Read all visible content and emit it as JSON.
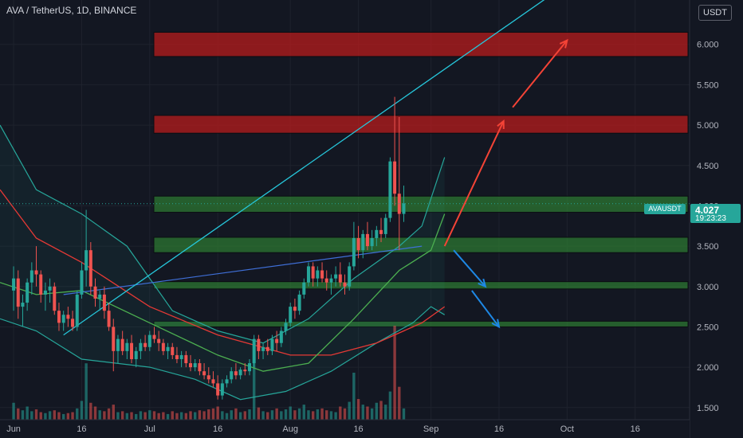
{
  "header": {
    "title": "AVA / TetherUS, 1D, BINANCE",
    "currency_button": "USDT"
  },
  "price_tag": {
    "symbol": "AVAUSDT",
    "price": "4.027",
    "countdown": "19:23:23"
  },
  "colors": {
    "background": "#131722",
    "up": "#26a69a",
    "down": "#ef5350",
    "trendline": "#26c6da",
    "support_zone": "#2e7d32",
    "resistance_zone": "#b71c1c",
    "arrow_up": "#f44336",
    "arrow_down": "#1e88e5",
    "bollinger": "#26a69a",
    "ma_red": "#e53935",
    "ma_green": "#4caf50"
  },
  "chart_data": {
    "type": "candlestick",
    "x_axis": {
      "tick_labels": [
        "Jun",
        "16",
        "Jul",
        "16",
        "Aug",
        "16",
        "Sep",
        "16",
        "Oct",
        "16"
      ],
      "tick_days": [
        0,
        15,
        30,
        45,
        61,
        76,
        92,
        107,
        122,
        137
      ],
      "range_days": [
        -3,
        149
      ]
    },
    "y_axis": {
      "tick_labels": [
        "1.500",
        "2.000",
        "2.500",
        "3.000",
        "3.500",
        "4.000",
        "4.500",
        "5.000",
        "5.500",
        "6.000"
      ],
      "tick_values": [
        1.5,
        2.0,
        2.5,
        3.0,
        3.5,
        4.0,
        4.5,
        5.0,
        5.5,
        6.0
      ],
      "range": [
        1.35,
        6.55
      ]
    },
    "last_price": 4.027,
    "ohlc_daily_from_jun1": [
      [
        2.95,
        3.25,
        2.7,
        3.1
      ],
      [
        3.1,
        3.2,
        2.6,
        2.75
      ],
      [
        2.75,
        2.9,
        2.5,
        2.8
      ],
      [
        2.8,
        3.1,
        2.7,
        3.05
      ],
      [
        3.05,
        3.3,
        2.9,
        3.2
      ],
      [
        3.2,
        3.5,
        3.0,
        3.15
      ],
      [
        3.15,
        3.2,
        2.8,
        2.9
      ],
      [
        2.9,
        3.05,
        2.7,
        2.95
      ],
      [
        2.95,
        3.1,
        2.8,
        3.0
      ],
      [
        3.0,
        3.05,
        2.65,
        2.7
      ],
      [
        2.7,
        2.8,
        2.45,
        2.55
      ],
      [
        2.55,
        2.7,
        2.45,
        2.65
      ],
      [
        2.65,
        2.75,
        2.5,
        2.6
      ],
      [
        2.6,
        2.7,
        2.45,
        2.5
      ],
      [
        2.5,
        2.95,
        2.45,
        2.9
      ],
      [
        2.9,
        3.3,
        2.85,
        3.2
      ],
      [
        3.2,
        3.95,
        3.0,
        3.45
      ],
      [
        3.45,
        3.55,
        2.9,
        3.0
      ],
      [
        3.0,
        3.1,
        2.75,
        2.85
      ],
      [
        2.85,
        2.95,
        2.7,
        2.9
      ],
      [
        2.9,
        3.0,
        2.6,
        2.7
      ],
      [
        2.7,
        2.8,
        2.45,
        2.5
      ],
      [
        2.5,
        2.6,
        1.95,
        2.2
      ],
      [
        2.2,
        2.4,
        2.05,
        2.35
      ],
      [
        2.35,
        2.45,
        2.15,
        2.2
      ],
      [
        2.2,
        2.35,
        2.1,
        2.3
      ],
      [
        2.3,
        2.4,
        2.05,
        2.1
      ],
      [
        2.1,
        2.25,
        2.0,
        2.2
      ],
      [
        2.2,
        2.35,
        2.1,
        2.3
      ],
      [
        2.3,
        2.4,
        2.2,
        2.25
      ],
      [
        2.25,
        2.45,
        2.2,
        2.4
      ],
      [
        2.4,
        2.5,
        2.3,
        2.35
      ],
      [
        2.35,
        2.45,
        2.2,
        2.3
      ],
      [
        2.3,
        2.35,
        2.15,
        2.2
      ],
      [
        2.2,
        2.3,
        2.1,
        2.25
      ],
      [
        2.25,
        2.3,
        2.1,
        2.15
      ],
      [
        2.15,
        2.25,
        2.05,
        2.1
      ],
      [
        2.1,
        2.2,
        2.0,
        2.15
      ],
      [
        2.15,
        2.2,
        2.0,
        2.05
      ],
      [
        2.05,
        2.15,
        1.95,
        2.0
      ],
      [
        2.0,
        2.1,
        1.95,
        2.05
      ],
      [
        2.05,
        2.1,
        1.9,
        1.95
      ],
      [
        1.95,
        2.05,
        1.85,
        1.9
      ],
      [
        1.9,
        2.0,
        1.8,
        1.85
      ],
      [
        1.85,
        1.95,
        1.75,
        1.8
      ],
      [
        1.8,
        1.9,
        1.6,
        1.65
      ],
      [
        1.65,
        1.85,
        1.6,
        1.8
      ],
      [
        1.8,
        1.9,
        1.75,
        1.85
      ],
      [
        1.85,
        2.0,
        1.8,
        1.95
      ],
      [
        1.95,
        2.05,
        1.85,
        1.9
      ],
      [
        1.9,
        2.0,
        1.85,
        1.97
      ],
      [
        1.97,
        2.05,
        1.9,
        1.95
      ],
      [
        1.95,
        2.1,
        1.9,
        2.05
      ],
      [
        2.05,
        2.4,
        2.0,
        2.35
      ],
      [
        2.35,
        2.4,
        2.1,
        2.2
      ],
      [
        2.2,
        2.3,
        2.1,
        2.25
      ],
      [
        2.25,
        2.35,
        2.15,
        2.2
      ],
      [
        2.2,
        2.4,
        2.15,
        2.35
      ],
      [
        2.35,
        2.45,
        2.2,
        2.3
      ],
      [
        2.3,
        2.5,
        2.25,
        2.45
      ],
      [
        2.45,
        2.6,
        2.4,
        2.55
      ],
      [
        2.55,
        2.8,
        2.5,
        2.75
      ],
      [
        2.75,
        2.85,
        2.6,
        2.7
      ],
      [
        2.7,
        2.95,
        2.65,
        2.9
      ],
      [
        2.9,
        3.1,
        2.85,
        3.05
      ],
      [
        3.05,
        3.3,
        3.0,
        3.25
      ],
      [
        3.25,
        3.3,
        3.0,
        3.1
      ],
      [
        3.1,
        3.25,
        3.0,
        3.2
      ],
      [
        3.2,
        3.3,
        3.05,
        3.1
      ],
      [
        3.1,
        3.2,
        2.95,
        3.05
      ],
      [
        3.05,
        3.15,
        2.9,
        3.1
      ],
      [
        3.1,
        3.25,
        3.0,
        3.15
      ],
      [
        3.15,
        3.3,
        3.0,
        3.05
      ],
      [
        3.05,
        3.15,
        2.9,
        3.0
      ],
      [
        3.0,
        3.3,
        2.95,
        3.25
      ],
      [
        3.25,
        3.8,
        3.2,
        3.6
      ],
      [
        3.6,
        3.75,
        3.35,
        3.45
      ],
      [
        3.45,
        3.7,
        3.35,
        3.65
      ],
      [
        3.65,
        3.8,
        3.45,
        3.5
      ],
      [
        3.5,
        3.7,
        3.45,
        3.6
      ],
      [
        3.6,
        3.75,
        3.5,
        3.7
      ],
      [
        3.7,
        3.85,
        3.55,
        3.65
      ],
      [
        3.65,
        3.9,
        3.6,
        3.85
      ],
      [
        3.85,
        4.6,
        3.8,
        4.55
      ],
      [
        4.55,
        5.35,
        4.0,
        4.15
      ],
      [
        4.15,
        5.1,
        3.45,
        3.9
      ],
      [
        3.9,
        4.25,
        3.8,
        4.03
      ]
    ],
    "volume_daily_from_jun1": [
      18,
      12,
      10,
      14,
      9,
      11,
      8,
      7,
      9,
      10,
      8,
      6,
      7,
      8,
      12,
      20,
      60,
      18,
      14,
      10,
      9,
      12,
      16,
      8,
      9,
      7,
      8,
      6,
      9,
      8,
      10,
      9,
      7,
      8,
      6,
      9,
      7,
      8,
      7,
      9,
      8,
      10,
      9,
      11,
      12,
      14,
      9,
      7,
      10,
      12,
      8,
      9,
      11,
      70,
      13,
      9,
      8,
      10,
      12,
      9,
      11,
      14,
      10,
      12,
      16,
      10,
      9,
      11,
      12,
      10,
      9,
      8,
      14,
      12,
      19,
      50,
      22,
      16,
      14,
      12,
      18,
      20,
      16,
      30,
      100,
      35,
      12
    ],
    "ma_red": [
      [
        -3,
        4.2
      ],
      [
        5,
        3.6
      ],
      [
        15,
        3.3
      ],
      [
        30,
        2.75
      ],
      [
        45,
        2.4
      ],
      [
        61,
        2.15
      ],
      [
        70,
        2.15
      ],
      [
        80,
        2.3
      ],
      [
        90,
        2.55
      ],
      [
        95,
        2.75
      ]
    ],
    "ma_green": [
      [
        -3,
        3.05
      ],
      [
        5,
        2.9
      ],
      [
        15,
        2.95
      ],
      [
        30,
        2.55
      ],
      [
        45,
        2.15
      ],
      [
        55,
        1.95
      ],
      [
        65,
        2.05
      ],
      [
        75,
        2.6
      ],
      [
        85,
        3.2
      ],
      [
        92,
        3.45
      ],
      [
        95,
        3.9
      ]
    ],
    "bollinger_upper": [
      [
        -3,
        5.0
      ],
      [
        5,
        4.2
      ],
      [
        15,
        3.9
      ],
      [
        25,
        3.5
      ],
      [
        35,
        2.7
      ],
      [
        45,
        2.45
      ],
      [
        55,
        2.3
      ],
      [
        65,
        2.6
      ],
      [
        75,
        3.1
      ],
      [
        85,
        3.5
      ],
      [
        90,
        3.75
      ],
      [
        95,
        4.6
      ]
    ],
    "bollinger_lower": [
      [
        -3,
        2.6
      ],
      [
        5,
        2.45
      ],
      [
        15,
        2.1
      ],
      [
        30,
        2.0
      ],
      [
        40,
        1.85
      ],
      [
        50,
        1.6
      ],
      [
        60,
        1.7
      ],
      [
        70,
        1.95
      ],
      [
        80,
        2.3
      ],
      [
        88,
        2.55
      ],
      [
        92,
        2.75
      ],
      [
        95,
        2.65
      ]
    ],
    "trendline": [
      [
        11,
        2.4
      ],
      [
        136,
        7.3
      ]
    ],
    "trendline_blue": [
      [
        11,
        2.9
      ],
      [
        90,
        3.5
      ]
    ],
    "resistance_zones": [
      [
        5.85,
        6.15
      ],
      [
        4.9,
        5.12
      ]
    ],
    "support_zones": [
      [
        3.92,
        4.12
      ],
      [
        3.42,
        3.61
      ],
      [
        2.97,
        3.06
      ],
      [
        2.5,
        2.57
      ]
    ],
    "arrows_up": [
      [
        [
          95,
          3.5
        ],
        [
          108,
          5.05
        ]
      ],
      [
        [
          110,
          5.22
        ],
        [
          122,
          6.05
        ]
      ]
    ],
    "arrows_down": [
      [
        [
          97,
          3.45
        ],
        [
          104,
          3.0
        ]
      ],
      [
        [
          101,
          2.95
        ],
        [
          107,
          2.5
        ]
      ]
    ]
  }
}
